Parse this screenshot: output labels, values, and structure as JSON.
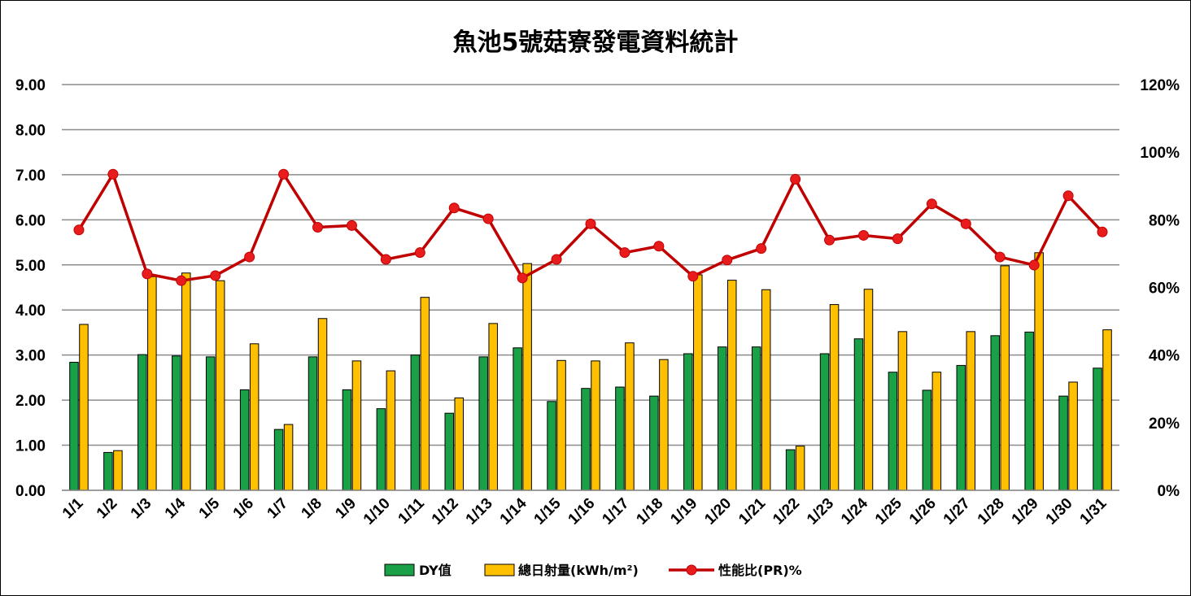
{
  "chart_data": {
    "type": "bar",
    "title": "魚池5號菇寮發電資料統計",
    "categories": [
      "1/1",
      "1/2",
      "1/3",
      "1/4",
      "1/5",
      "1/6",
      "1/7",
      "1/8",
      "1/9",
      "1/10",
      "1/11",
      "1/12",
      "1/13",
      "1/14",
      "1/15",
      "1/16",
      "1/17",
      "1/18",
      "1/19",
      "1/20",
      "1/21",
      "1/22",
      "1/23",
      "1/24",
      "1/25",
      "1/26",
      "1/27",
      "1/28",
      "1/29",
      "1/30",
      "1/31"
    ],
    "y_left": {
      "ylim": [
        0,
        9
      ],
      "ticks": [
        "0.00",
        "1.00",
        "2.00",
        "3.00",
        "4.00",
        "5.00",
        "6.00",
        "7.00",
        "8.00",
        "9.00"
      ]
    },
    "y_right": {
      "ylim": [
        0,
        120
      ],
      "ticks": [
        "0%",
        "20%",
        "40%",
        "60%",
        "80%",
        "100%",
        "120%"
      ]
    },
    "grid": true,
    "legend_position": "bottom",
    "series": [
      {
        "name": "DY值",
        "type": "bar",
        "axis": "left",
        "color": "#1aa148",
        "values": [
          2.84,
          0.84,
          3.01,
          2.98,
          2.96,
          2.23,
          1.35,
          2.96,
          2.23,
          1.81,
          3.0,
          1.71,
          2.96,
          3.16,
          1.97,
          2.26,
          2.29,
          2.09,
          3.03,
          3.18,
          3.18,
          0.9,
          3.03,
          3.36,
          2.62,
          2.22,
          2.77,
          3.43,
          3.51,
          2.09,
          2.71
        ]
      },
      {
        "name": "總日射量(kWh/m²)",
        "type": "bar",
        "axis": "left",
        "color": "#ffc000",
        "values": [
          3.68,
          0.88,
          4.74,
          4.82,
          4.65,
          3.25,
          1.46,
          3.81,
          2.87,
          2.65,
          4.28,
          2.05,
          3.7,
          5.03,
          2.88,
          2.87,
          3.27,
          2.9,
          4.78,
          4.66,
          4.45,
          0.98,
          4.12,
          4.46,
          3.52,
          2.62,
          3.52,
          4.98,
          5.27,
          2.4,
          3.56
        ]
      },
      {
        "name": "性能比(PR)%",
        "type": "line",
        "axis": "right",
        "color": "#c00000",
        "marker_color": "#e81c1c",
        "values": [
          77,
          93.5,
          64,
          62,
          63.5,
          69,
          93.5,
          77.8,
          78.3,
          68.3,
          70.3,
          83.5,
          80.3,
          62.8,
          68.3,
          78.8,
          70.3,
          72.2,
          63.3,
          68.1,
          71.5,
          92,
          74,
          75.4,
          74.4,
          84.7,
          78.8,
          69,
          66.6,
          87.1,
          76.4
        ]
      }
    ]
  }
}
